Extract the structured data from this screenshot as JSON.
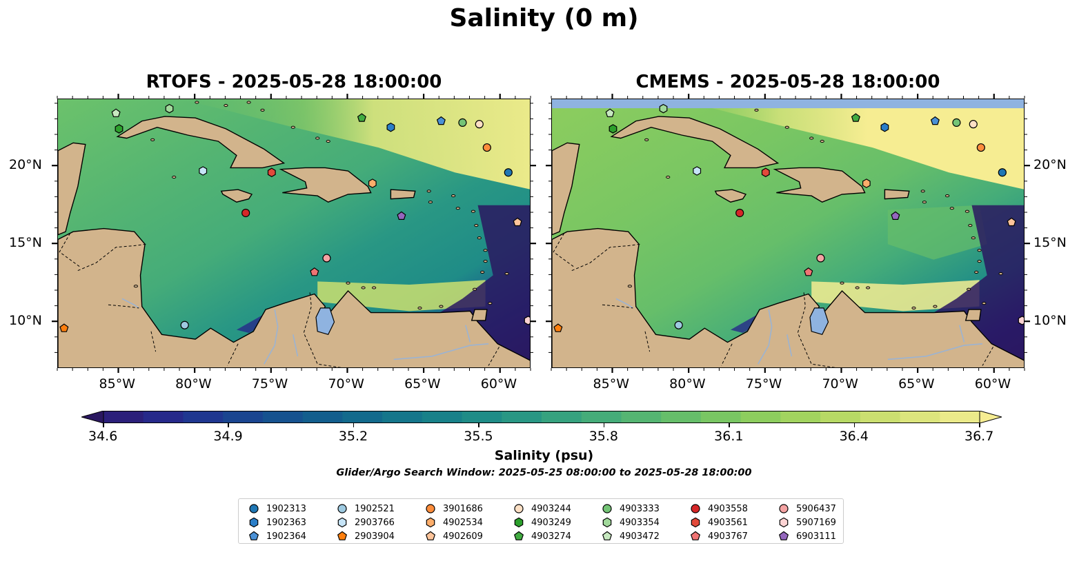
{
  "title": "Salinity (0 m)",
  "panels": [
    {
      "title": "RTOFS - 2025-05-28 18:00:00"
    },
    {
      "title": "CMEMS - 2025-05-28 18:00:00"
    }
  ],
  "x_ticks": [
    "85°W",
    "80°W",
    "75°W",
    "70°W",
    "65°W",
    "60°W"
  ],
  "y_ticks": [
    "20°N",
    "15°N",
    "10°N"
  ],
  "colorbar": {
    "ticks": [
      "34.6",
      "34.9",
      "35.2",
      "35.5",
      "35.8",
      "36.1",
      "36.4",
      "36.7"
    ],
    "label": "Salinity (psu)",
    "colors": [
      "#2a1760",
      "#2b1f7a",
      "#26298a",
      "#1f3790",
      "#1a4590",
      "#16528f",
      "#135e8d",
      "#136a8c",
      "#15768b",
      "#188189",
      "#1f8c87",
      "#299784",
      "#36a27f",
      "#45ac79",
      "#55b572",
      "#66be6a",
      "#79c663",
      "#8dcd5e",
      "#a2d35f",
      "#b7d965",
      "#cbdf70",
      "#dce57d",
      "#ebea8a",
      "#f6ed92"
    ]
  },
  "search_window": "Glider/Argo Search Window: 2025-05-25 08:00:00 to 2025-05-28 18:00:00",
  "legend": {
    "columns": [
      [
        {
          "id": "1902313",
          "marker": "circle",
          "color": "#1f77b4"
        },
        {
          "id": "1902363",
          "marker": "hexagon",
          "color": "#2a7ec8"
        },
        {
          "id": "1902364",
          "marker": "pentagon",
          "color": "#4b91d6"
        }
      ],
      [
        {
          "id": "1902521",
          "marker": "circle",
          "color": "#9ecae1"
        },
        {
          "id": "2903766",
          "marker": "hexagon",
          "color": "#c6e4f7"
        },
        {
          "id": "2903904",
          "marker": "pentagon",
          "color": "#ff7f0e"
        }
      ],
      [
        {
          "id": "3901686",
          "marker": "circle",
          "color": "#fd8d3c"
        },
        {
          "id": "4902534",
          "marker": "hexagon",
          "color": "#fdae6b"
        },
        {
          "id": "4902609",
          "marker": "pentagon",
          "color": "#fdc49a"
        }
      ],
      [
        {
          "id": "4903244",
          "marker": "circle",
          "color": "#fde0c5"
        },
        {
          "id": "4903249",
          "marker": "hexagon",
          "color": "#2ca02c"
        },
        {
          "id": "4903274",
          "marker": "pentagon",
          "color": "#41ab41"
        }
      ],
      [
        {
          "id": "4903333",
          "marker": "circle",
          "color": "#74c476"
        },
        {
          "id": "4903354",
          "marker": "hexagon",
          "color": "#a1d99b"
        },
        {
          "id": "4903472",
          "marker": "pentagon",
          "color": "#c7e9c0"
        }
      ],
      [
        {
          "id": "4903558",
          "marker": "circle",
          "color": "#d62728"
        },
        {
          "id": "4903561",
          "marker": "hexagon",
          "color": "#e24a3b"
        },
        {
          "id": "4903767",
          "marker": "pentagon",
          "color": "#f07474"
        }
      ],
      [
        {
          "id": "5906437",
          "marker": "circle",
          "color": "#f4a3a3"
        },
        {
          "id": "5907169",
          "marker": "hexagon",
          "color": "#fcd3d3"
        },
        {
          "id": "6903111",
          "marker": "pentagon",
          "color": "#9467bd"
        }
      ]
    ]
  },
  "floats": [
    {
      "id": "1902313",
      "lon": -59.5,
      "lat": 19.6
    },
    {
      "id": "1902363",
      "lon": -67.2,
      "lat": 22.5
    },
    {
      "id": "1902364",
      "lon": -63.9,
      "lat": 22.9
    },
    {
      "id": "1902521",
      "lon": -80.7,
      "lat": 9.8
    },
    {
      "id": "2903766",
      "lon": -79.5,
      "lat": 19.7
    },
    {
      "id": "2903904",
      "lon": -88.6,
      "lat": 9.6
    },
    {
      "id": "3901686",
      "lon": -60.9,
      "lat": 21.2
    },
    {
      "id": "4902534",
      "lon": -68.4,
      "lat": 18.9
    },
    {
      "id": "4902609",
      "lon": -58.9,
      "lat": 16.4
    },
    {
      "id": "4903244",
      "lon": -61.4,
      "lat": 22.7
    },
    {
      "id": "4903249",
      "lon": -85.0,
      "lat": 22.4
    },
    {
      "id": "4903274",
      "lon": -69.1,
      "lat": 23.1
    },
    {
      "id": "4903333",
      "lon": -62.5,
      "lat": 22.8
    },
    {
      "id": "4903354",
      "lon": -81.7,
      "lat": 23.7
    },
    {
      "id": "4903472",
      "lon": -85.2,
      "lat": 23.4
    },
    {
      "id": "4903558",
      "lon": -76.7,
      "lat": 17.0
    },
    {
      "id": "4903561",
      "lon": -75.0,
      "lat": 19.6
    },
    {
      "id": "4903767",
      "lon": -72.2,
      "lat": 13.2
    },
    {
      "id": "5906437",
      "lon": -71.4,
      "lat": 14.1
    },
    {
      "id": "5907169",
      "lon": -58.2,
      "lat": 10.1
    },
    {
      "id": "6903111",
      "lon": -66.5,
      "lat": 16.8
    }
  ]
}
